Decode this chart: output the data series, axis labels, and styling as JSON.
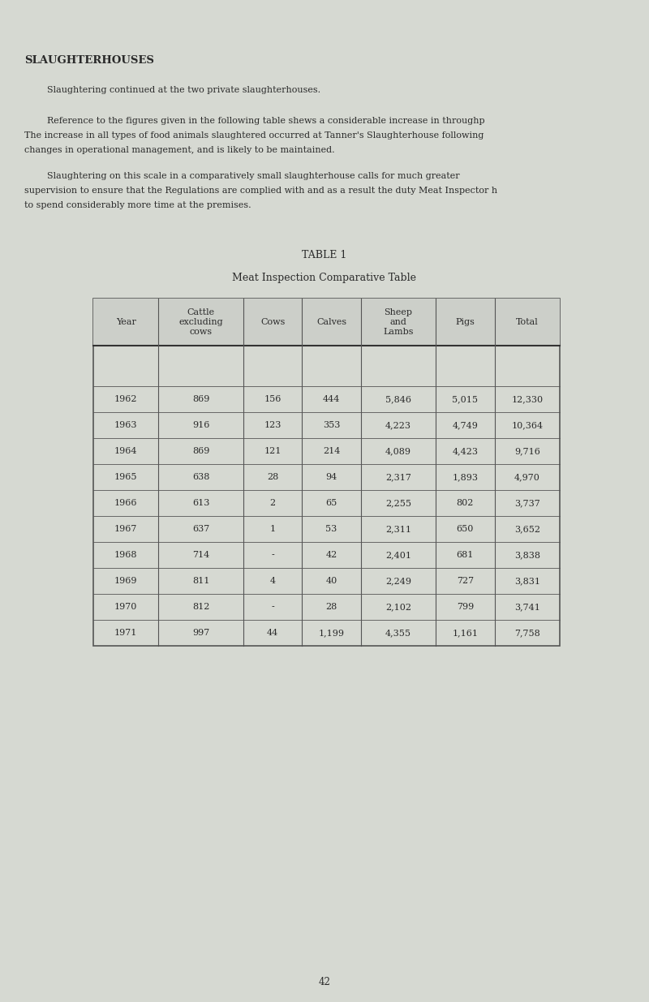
{
  "title": "SLAUGHTERHOUSES",
  "para1_indent": "        Slaughtering continued at the two private slaughterhouses.",
  "para2_line1": "        Reference to the figures given in the following table shews a considerable increase in throughp",
  "para2_line2": "The increase in all types of food animals slaughtered occurred at Tanner's Slaughterhouse following",
  "para2_line3": "changes in operational management, and is likely to be maintained.",
  "para3_line1": "        Slaughtering on this scale in a comparatively small slaughterhouse calls for much greater",
  "para3_line2": "supervision to ensure that the Regulations are complied with and as a result the duty Meat Inspector h",
  "para3_line3": "to spend considerably more time at the premises.",
  "table_title": "TABLE 1",
  "table_subtitle": "Meat Inspection Comparative Table",
  "col_headers": [
    "Year",
    "Cattle\nexcluding\ncows",
    "Cows",
    "Calves",
    "Sheep\nand\nLambs",
    "Pigs",
    "Total"
  ],
  "rows": [
    [
      "1962",
      "869",
      "156",
      "444",
      "5,846",
      "5,015",
      "12,330"
    ],
    [
      "1963",
      "916",
      "123",
      "353",
      "4,223",
      "4,749",
      "10,364"
    ],
    [
      "1964",
      "869",
      "121",
      "214",
      "4,089",
      "4,423",
      "9,716"
    ],
    [
      "1965",
      "638",
      "28",
      "94",
      "2,317",
      "1,893",
      "4,970"
    ],
    [
      "1966",
      "613",
      "2",
      "65",
      "2,255",
      "802",
      "3,737"
    ],
    [
      "1967",
      "637",
      "1",
      "53",
      "2,311",
      "650",
      "3,652"
    ],
    [
      "1968",
      "714",
      "-",
      "42",
      "2,401",
      "681",
      "3,838"
    ],
    [
      "1969",
      "811",
      "4",
      "40",
      "2,249",
      "727",
      "3,831"
    ],
    [
      "1970",
      "812",
      "-",
      "28",
      "2,102",
      "799",
      "3,741"
    ],
    [
      "1971",
      "997",
      "44",
      "1,199",
      "4,355",
      "1,161",
      "7,758"
    ]
  ],
  "page_number": "42",
  "bg_color": "#d6d9d2",
  "text_color": "#2a2a2a",
  "table_line_color": "#555555",
  "font_size_title": 9.5,
  "font_size_body": 8.0,
  "font_size_table_header": 8.0,
  "font_size_table_data": 8.0,
  "font_size_table_title": 9.0,
  "font_size_page": 8.5
}
